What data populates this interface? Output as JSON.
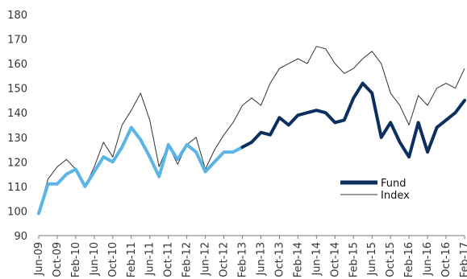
{
  "chart_data": {
    "type": "line",
    "title": "",
    "xlabel": "",
    "ylabel": "",
    "ylim": [
      90,
      180
    ],
    "y_ticks": [
      90,
      100,
      110,
      120,
      130,
      140,
      150,
      160,
      170,
      180
    ],
    "grid": false,
    "legend": "right",
    "x": [
      "Jun-09",
      "Aug-09",
      "Oct-09",
      "Dec-09",
      "Feb-10",
      "Apr-10",
      "Jun-10",
      "Aug-10",
      "Oct-10",
      "Dec-10",
      "Feb-11",
      "Apr-11",
      "Jun-11",
      "Aug-11",
      "Oct-11",
      "Dec-11",
      "Feb-12",
      "Apr-12",
      "Jun-12",
      "Aug-12",
      "Oct-12",
      "Dec-12",
      "Feb-13",
      "Apr-13",
      "Jun-13",
      "Aug-13",
      "Oct-13",
      "Dec-13",
      "Feb-14",
      "Apr-14",
      "Jun-14",
      "Aug-14",
      "Oct-14",
      "Dec-14",
      "Feb-15",
      "Apr-15",
      "Jun-15",
      "Aug-15",
      "Oct-15",
      "Dec-15",
      "Feb-16",
      "Apr-16",
      "Jun-16",
      "Aug-16",
      "Oct-16",
      "Dec-16",
      "Feb-17"
    ],
    "x_tick_labels": [
      "Jun-09",
      "Oct-09",
      "Feb-10",
      "Jun-10",
      "Oct-10",
      "Feb-11",
      "Jun-11",
      "Oct-11",
      "Feb-12",
      "Jun-12",
      "Oct-12",
      "Feb-13",
      "Jun-13",
      "Oct-13",
      "Feb-14",
      "Jun-14",
      "Oct-14",
      "Feb-15",
      "Jun-15",
      "Oct-15",
      "Feb-16",
      "Jun-16",
      "Oct-16",
      "Feb-17"
    ],
    "series": [
      {
        "name": "Fund",
        "color_early": "#5ab4e5",
        "color_late": "#0b2f5e",
        "split_after": "Feb-13",
        "values": [
          99,
          111,
          111,
          115,
          117,
          110,
          116,
          122,
          120,
          126,
          134,
          129,
          122,
          114,
          127,
          121,
          127,
          124,
          116,
          120,
          124,
          124,
          126,
          128,
          132,
          131,
          138,
          135,
          139,
          140,
          141,
          140,
          136,
          137,
          146,
          152,
          148,
          130,
          136,
          128,
          122,
          136,
          124,
          134,
          137,
          140,
          145
        ]
      },
      {
        "name": "Index",
        "color": "#333333",
        "values": [
          100,
          113,
          118,
          121,
          117,
          110,
          118,
          128,
          122,
          135,
          141,
          148,
          137,
          118,
          127,
          119,
          127,
          130,
          117,
          125,
          131,
          136,
          143,
          146,
          143,
          152,
          158,
          160,
          162,
          160,
          167,
          166,
          160,
          156,
          158,
          162,
          165,
          160,
          148,
          143,
          135,
          147,
          143,
          150,
          152,
          150,
          158
        ]
      }
    ]
  }
}
